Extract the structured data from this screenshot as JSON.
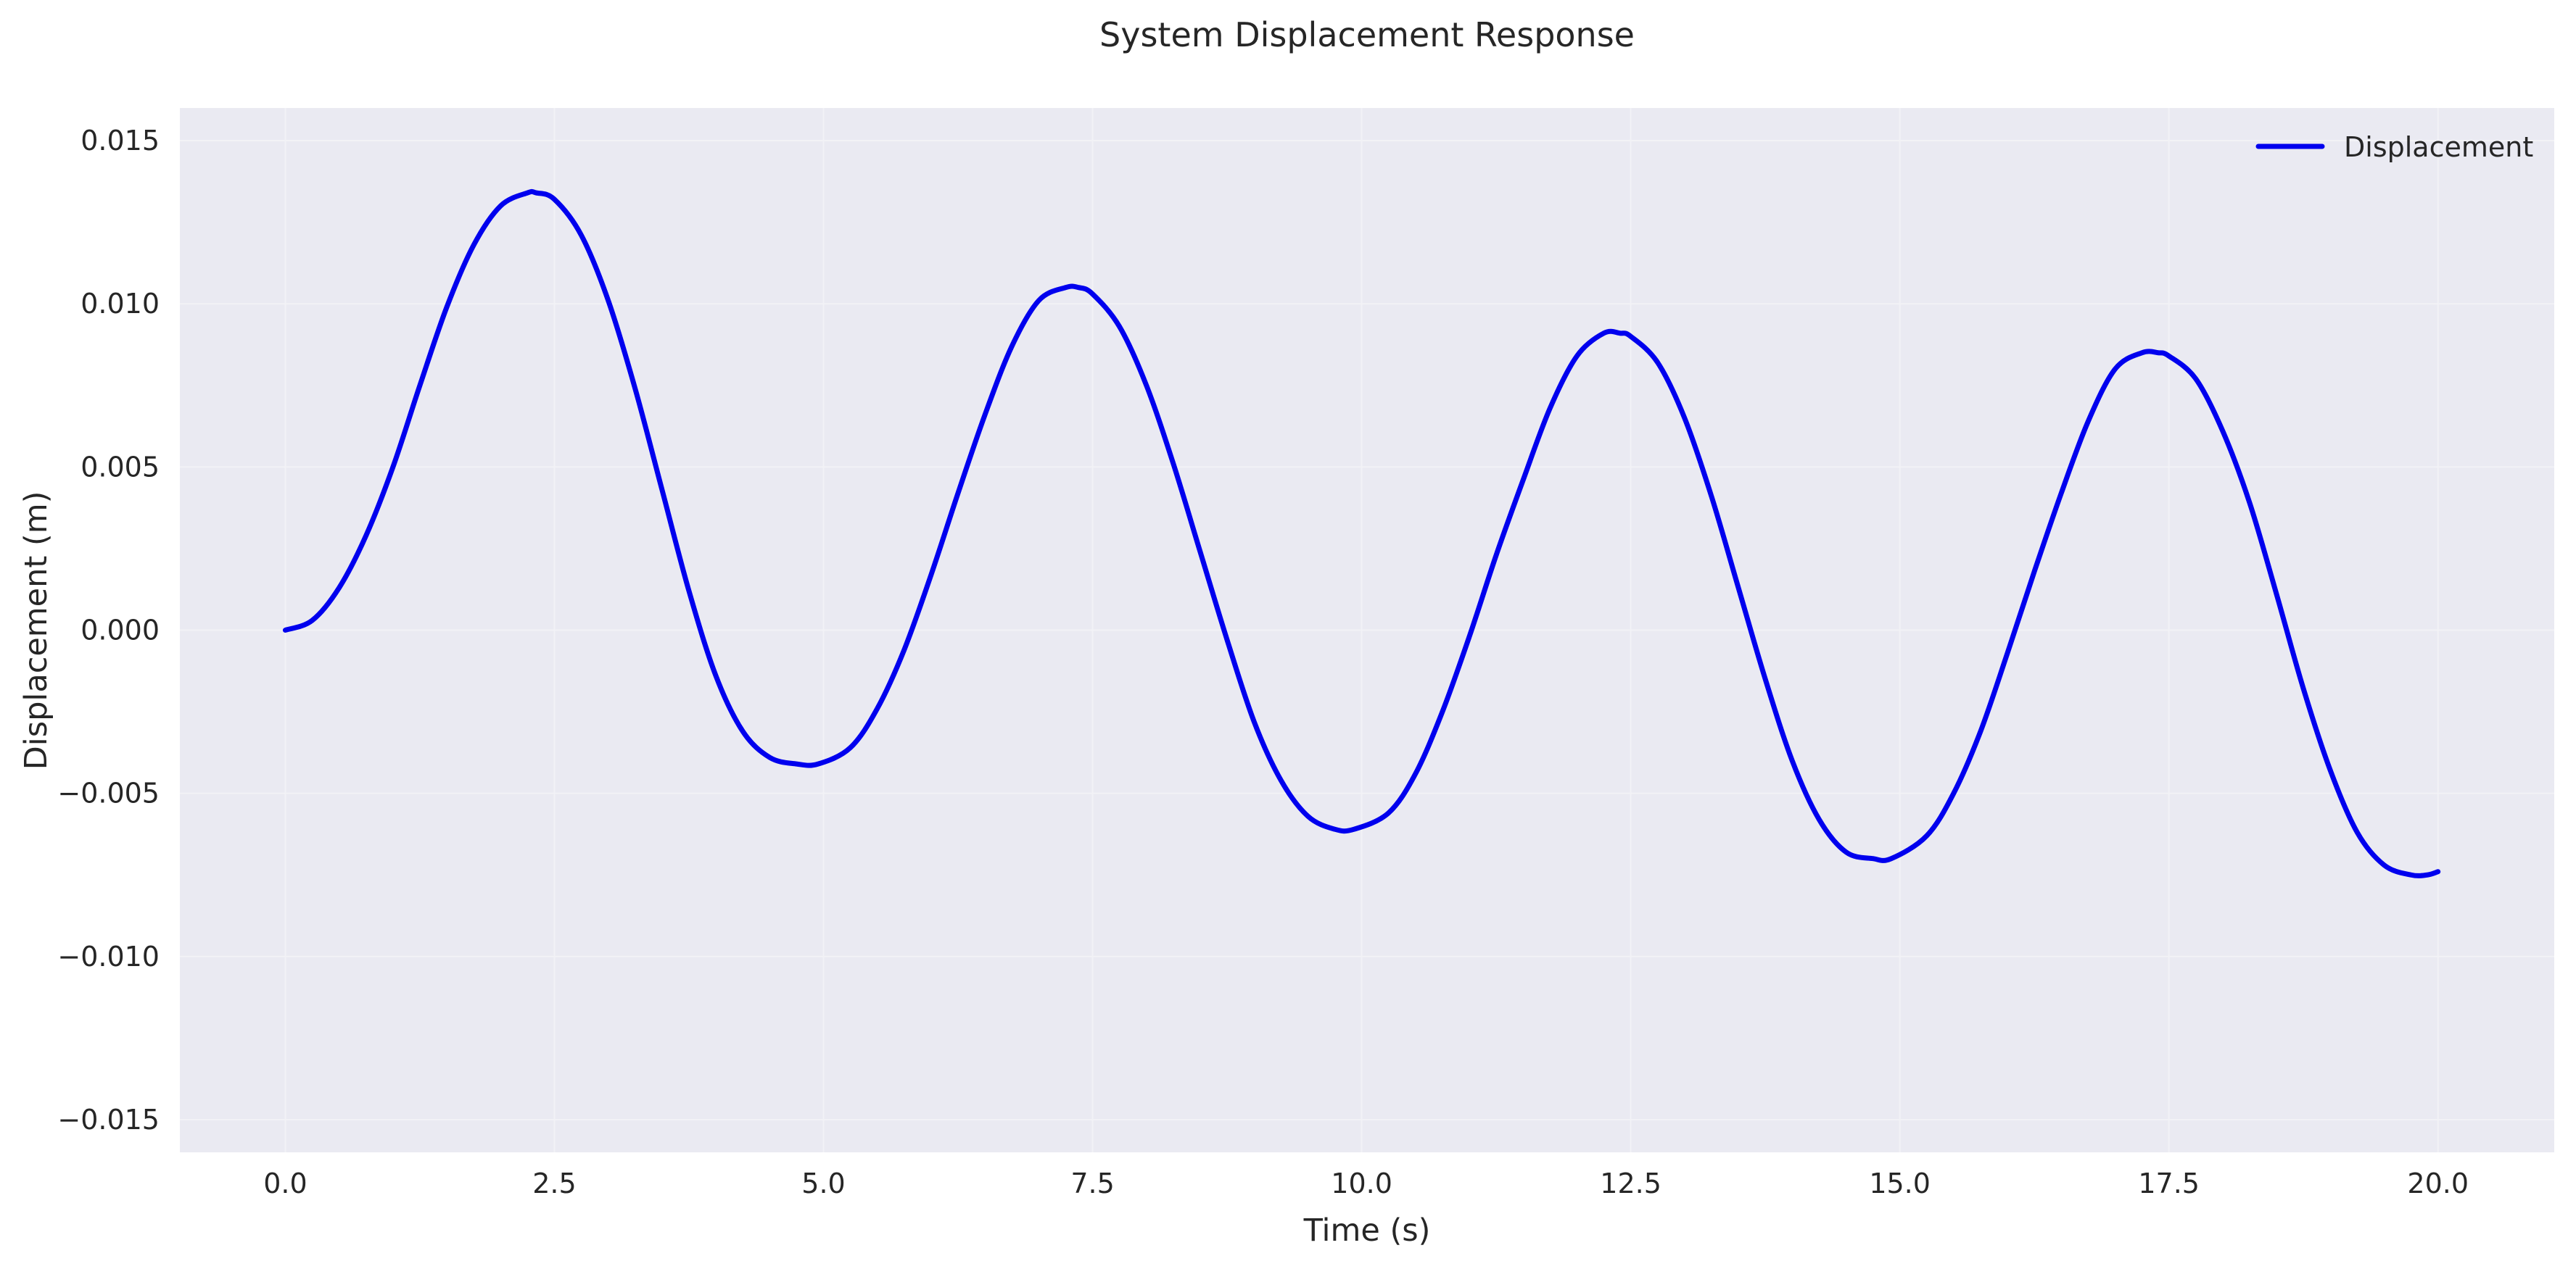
{
  "chart_data": {
    "type": "line",
    "title": "System Displacement Response",
    "xlabel": "Time (s)",
    "ylabel": "Displacement (m)",
    "xlim": [
      -0.98,
      21.08
    ],
    "ylim": [
      -0.016,
      0.016
    ],
    "xticks": [
      0.0,
      2.5,
      5.0,
      7.5,
      10.0,
      12.5,
      15.0,
      17.5,
      20.0
    ],
    "xtick_labels": [
      "0.0",
      "2.5",
      "5.0",
      "7.5",
      "10.0",
      "12.5",
      "15.0",
      "17.5",
      "20.0"
    ],
    "yticks": [
      0.015,
      0.01,
      0.005,
      0.0,
      -0.005,
      -0.01,
      -0.015
    ],
    "ytick_labels": [
      "0.015",
      "0.010",
      "0.005",
      "0.000",
      "−0.005",
      "−0.010",
      "−0.015"
    ],
    "grid": true,
    "legend_position": "top-right",
    "colors": {
      "plot_background": "#eaeaf2",
      "grid": "#f2f2f6",
      "series": "#0000ee"
    },
    "series": [
      {
        "name": "Displacement",
        "x": [
          0.0,
          0.25,
          0.5,
          0.75,
          1.0,
          1.25,
          1.5,
          1.75,
          2.0,
          2.25,
          2.33,
          2.5,
          2.75,
          3.0,
          3.25,
          3.5,
          3.75,
          4.0,
          4.25,
          4.5,
          4.75,
          4.95,
          5.25,
          5.5,
          5.75,
          6.0,
          6.25,
          6.5,
          6.75,
          7.0,
          7.25,
          7.37,
          7.5,
          7.75,
          8.0,
          8.25,
          8.5,
          8.75,
          9.0,
          9.25,
          9.5,
          9.75,
          9.93,
          10.25,
          10.5,
          10.75,
          11.0,
          11.25,
          11.5,
          11.75,
          12.0,
          12.25,
          12.4,
          12.5,
          12.75,
          13.0,
          13.25,
          13.5,
          13.75,
          14.0,
          14.25,
          14.5,
          14.75,
          14.92,
          15.25,
          15.5,
          15.75,
          16.0,
          16.25,
          16.5,
          16.75,
          17.0,
          17.25,
          17.4,
          17.5,
          17.75,
          18.0,
          18.25,
          18.5,
          18.75,
          19.0,
          19.25,
          19.5,
          19.75,
          19.9,
          20.0
        ],
        "y": [
          0.0,
          0.0003,
          0.0013,
          0.0029,
          0.005,
          0.0075,
          0.0099,
          0.0118,
          0.013,
          0.0134,
          0.0134,
          0.0132,
          0.0121,
          0.0101,
          0.0074,
          0.0043,
          0.0012,
          -0.0014,
          -0.0031,
          -0.0039,
          -0.0041,
          -0.0041,
          -0.0036,
          -0.0024,
          -0.0006,
          0.0017,
          0.0042,
          0.0066,
          0.0087,
          0.0101,
          0.0105,
          0.0105,
          0.0103,
          0.0093,
          0.0075,
          0.0051,
          0.0024,
          -0.0003,
          -0.0028,
          -0.0046,
          -0.0057,
          -0.0061,
          -0.0061,
          -0.0056,
          -0.0044,
          -0.0025,
          -0.0002,
          0.0023,
          0.0046,
          0.0068,
          0.0084,
          0.0091,
          0.0091,
          0.009,
          0.0082,
          0.0065,
          0.0041,
          0.0013,
          -0.0015,
          -0.004,
          -0.0058,
          -0.0068,
          -0.007,
          -0.007,
          -0.0063,
          -0.005,
          -0.0031,
          -0.0007,
          0.0018,
          0.0042,
          0.0064,
          0.008,
          0.0085,
          0.0085,
          0.0084,
          0.0077,
          0.0061,
          0.0039,
          0.0011,
          -0.0018,
          -0.0043,
          -0.0062,
          -0.0072,
          -0.0075,
          -0.0075,
          -0.0074
        ]
      }
    ]
  }
}
